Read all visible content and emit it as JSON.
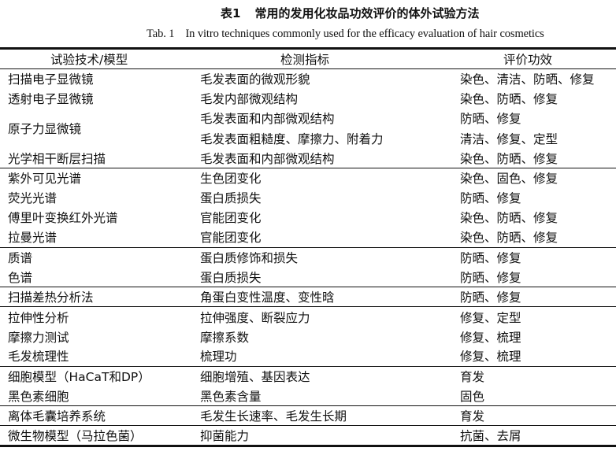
{
  "caption": {
    "number_cn": "表1",
    "title_cn": "常用的发用化妆品功效评价的体外试验方法",
    "number_en": "Tab. 1",
    "title_en": "In vitro techniques commonly used for the efficacy evaluation of hair cosmetics"
  },
  "table": {
    "headers": [
      "试验技术/模型",
      "检测指标",
      "评价功效"
    ],
    "groups": [
      {
        "items": [
          {
            "technique": "扫描电子显微镜",
            "measures": [
              {
                "indicator": "毛发表面的微观形貌",
                "efficacy": "染色、清洁、防晒、修复"
              }
            ]
          },
          {
            "technique": "透射电子显微镜",
            "measures": [
              {
                "indicator": "毛发内部微观结构",
                "efficacy": "染色、防晒、修复"
              }
            ]
          },
          {
            "technique": "原子力显微镜",
            "measures": [
              {
                "indicator": "毛发表面和内部微观结构",
                "efficacy": "防晒、修复"
              },
              {
                "indicator": "毛发表面粗糙度、摩擦力、附着力",
                "efficacy": "清洁、修复、定型"
              }
            ]
          },
          {
            "technique": "光学相干断层扫描",
            "measures": [
              {
                "indicator": "毛发表面和内部微观结构",
                "efficacy": "染色、防晒、修复"
              }
            ]
          }
        ]
      },
      {
        "items": [
          {
            "technique": "紫外可见光谱",
            "measures": [
              {
                "indicator": "生色团变化",
                "efficacy": "染色、固色、修复"
              }
            ]
          },
          {
            "technique": "荧光光谱",
            "measures": [
              {
                "indicator": "蛋白质损失",
                "efficacy": "防晒、修复"
              }
            ]
          },
          {
            "technique": "傅里叶变换红外光谱",
            "measures": [
              {
                "indicator": "官能团变化",
                "efficacy": "染色、防晒、修复"
              }
            ]
          },
          {
            "technique": "拉曼光谱",
            "measures": [
              {
                "indicator": "官能团变化",
                "efficacy": "染色、防晒、修复"
              }
            ]
          }
        ]
      },
      {
        "items": [
          {
            "technique": "质谱",
            "measures": [
              {
                "indicator": "蛋白质修饰和损失",
                "efficacy": "防晒、修复"
              }
            ]
          },
          {
            "technique": "色谱",
            "measures": [
              {
                "indicator": "蛋白质损失",
                "efficacy": "防晒、修复"
              }
            ]
          }
        ]
      },
      {
        "items": [
          {
            "technique": "扫描差热分析法",
            "measures": [
              {
                "indicator": "角蛋白变性温度、变性晗",
                "efficacy": "防晒、修复"
              }
            ]
          }
        ]
      },
      {
        "items": [
          {
            "technique": "拉伸性分析",
            "measures": [
              {
                "indicator": "拉伸强度、断裂应力",
                "efficacy": "修复、定型"
              }
            ]
          },
          {
            "technique": "摩擦力测试",
            "measures": [
              {
                "indicator": "摩擦系数",
                "efficacy": "修复、梳理"
              }
            ]
          },
          {
            "technique": "毛发梳理性",
            "measures": [
              {
                "indicator": "梳理功",
                "efficacy": "修复、梳理"
              }
            ]
          }
        ]
      },
      {
        "items": [
          {
            "technique": "细胞模型（HaCaT和DP）",
            "measures": [
              {
                "indicator": "细胞增殖、基因表达",
                "efficacy": "育发"
              }
            ]
          },
          {
            "technique": "黑色素细胞",
            "measures": [
              {
                "indicator": "黑色素含量",
                "efficacy": "固色"
              }
            ]
          }
        ]
      },
      {
        "items": [
          {
            "technique": "离体毛囊培养系统",
            "measures": [
              {
                "indicator": "毛发生长速率、毛发生长期",
                "efficacy": "育发"
              }
            ]
          }
        ]
      },
      {
        "items": [
          {
            "technique": "微生物模型（马拉色菌）",
            "measures": [
              {
                "indicator": "抑菌能力",
                "efficacy": "抗菌、去屑"
              }
            ]
          }
        ]
      }
    ]
  }
}
